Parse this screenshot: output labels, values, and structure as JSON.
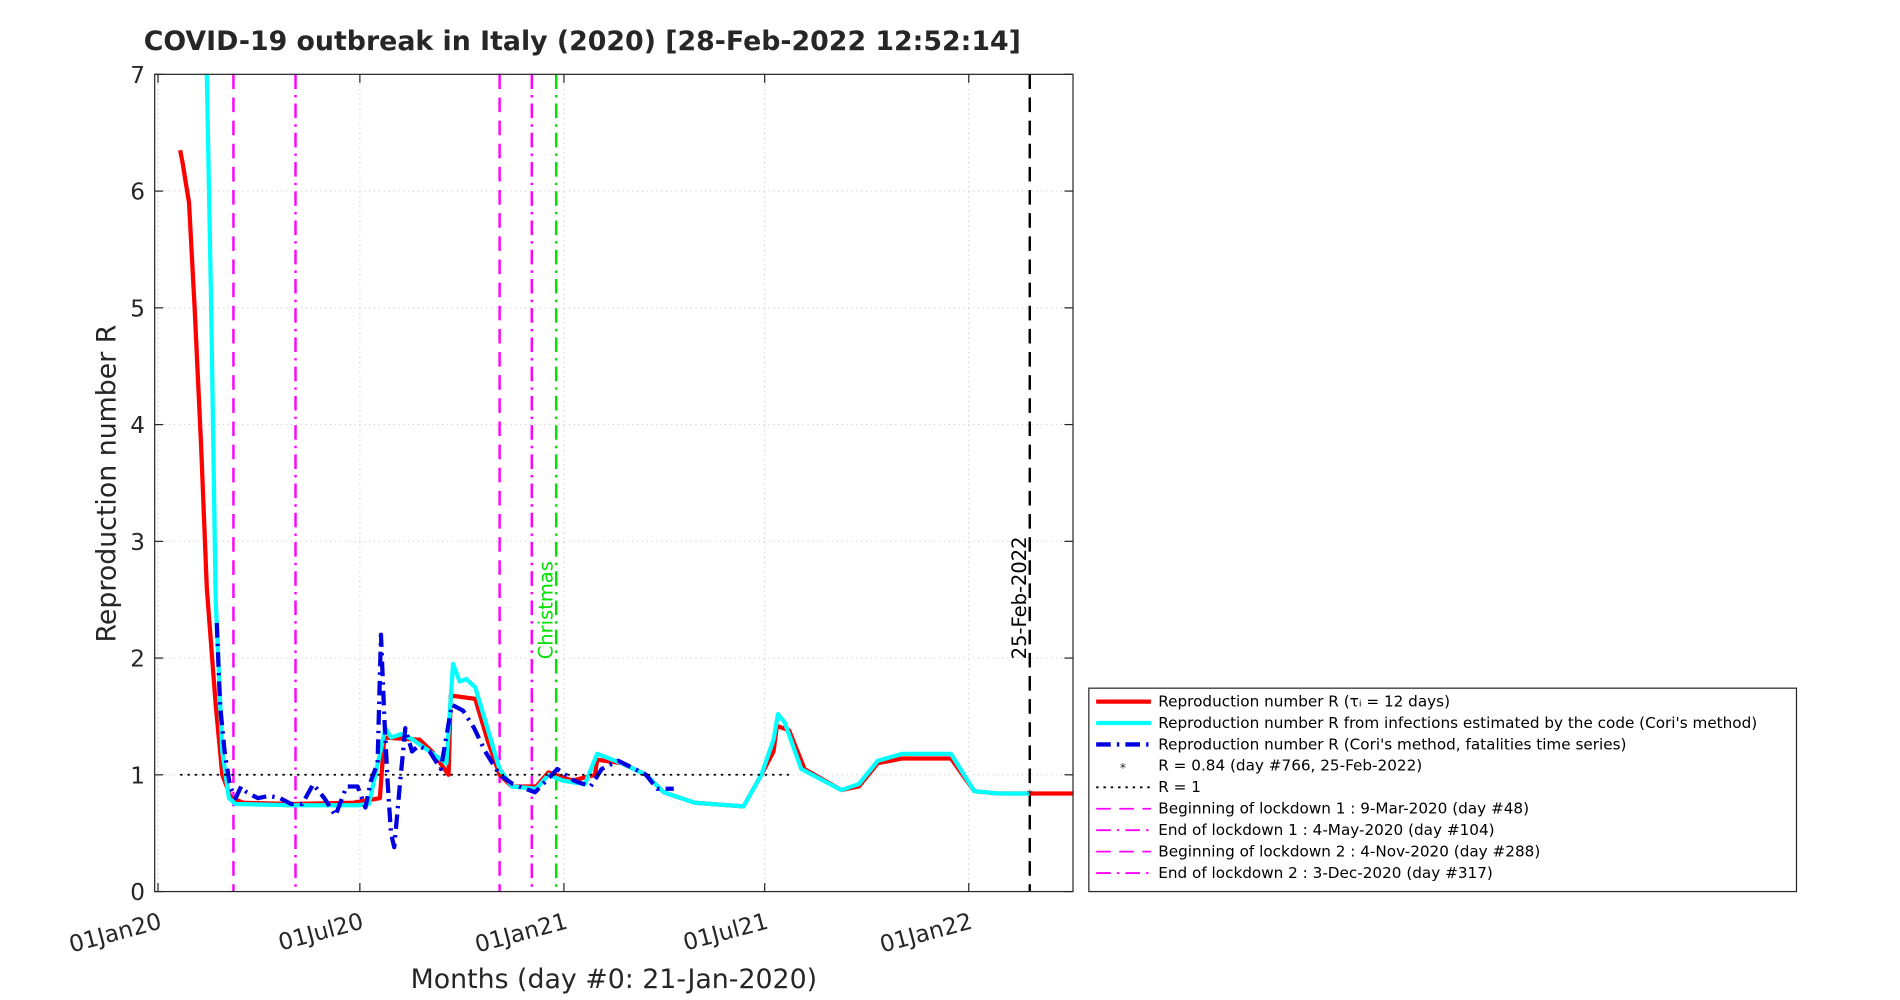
{
  "chart_data": {
    "type": "line",
    "title": "COVID-19 outbreak in Italy (2020) [28-Feb-2022 12:52:14]",
    "xlabel": "Months (day #0: 21-Jan-2020)",
    "ylabel": "Reproduction number R",
    "xlim": [
      -23,
      805
    ],
    "ylim": [
      0,
      7
    ],
    "xticks": [
      {
        "value": -20,
        "label": "01Jan20"
      },
      {
        "value": 162,
        "label": "01Jul20"
      },
      {
        "value": 346,
        "label": "01Jan21"
      },
      {
        "value": 527,
        "label": "01Jul21"
      },
      {
        "value": 711,
        "label": "01Jan22"
      }
    ],
    "yticks": [
      0,
      1,
      2,
      3,
      4,
      5,
      6,
      7
    ],
    "grid": true,
    "legend_location": "southeastoutside",
    "series": [
      {
        "name": "Reproduction number R (τᵢ = 12 days)",
        "color": "#ff0000",
        "style": "solid",
        "width": 3.5,
        "x": [
          0,
          2,
          8,
          13,
          19,
          24,
          32,
          38,
          46,
          57,
          101,
          156,
          180,
          184,
          216,
          227,
          242,
          244,
          266,
          277,
          288,
          299,
          321,
          332,
          354,
          374,
          376,
          398,
          420,
          436,
          464,
          508,
          524,
          535,
          538,
          549,
          563,
          596,
          612,
          629,
          651,
          695,
          716,
          738,
          805
        ],
        "values": [
          6.35,
          6.25,
          5.9,
          5.0,
          3.8,
          2.6,
          1.6,
          1.0,
          0.8,
          0.76,
          0.75,
          0.76,
          0.8,
          1.32,
          1.3,
          1.2,
          1.0,
          1.68,
          1.65,
          1.3,
          1.0,
          0.9,
          0.9,
          1.02,
          0.95,
          1.0,
          1.13,
          1.1,
          1.0,
          0.85,
          0.76,
          0.73,
          1.0,
          1.2,
          1.42,
          1.38,
          1.05,
          0.87,
          0.9,
          1.1,
          1.14,
          1.14,
          0.86,
          0.84,
          0.84
        ]
      },
      {
        "name": "Reproduction number R from infections estimated by the code (Cori's method)",
        "color": "#00ffff",
        "style": "solid",
        "width": 3.5,
        "x": [
          24,
          28,
          32,
          38,
          44,
          50,
          100,
          160,
          170,
          176,
          185,
          190,
          200,
          210,
          225,
          240,
          246,
          252,
          258,
          266,
          277,
          288,
          299,
          321,
          332,
          345,
          365,
          376,
          398,
          420,
          436,
          464,
          508,
          524,
          535,
          539,
          545,
          560,
          596,
          612,
          629,
          651,
          695,
          716,
          738,
          766
        ],
        "values": [
          7,
          5,
          2.5,
          1.2,
          0.8,
          0.75,
          0.74,
          0.74,
          0.75,
          1.0,
          1.4,
          1.32,
          1.35,
          1.3,
          1.2,
          1.1,
          1.95,
          1.8,
          1.82,
          1.75,
          1.4,
          1.05,
          0.9,
          0.88,
          1.0,
          0.95,
          0.92,
          1.18,
          1.1,
          1.0,
          0.85,
          0.76,
          0.73,
          1.0,
          1.3,
          1.52,
          1.45,
          1.05,
          0.87,
          0.92,
          1.12,
          1.18,
          1.18,
          0.86,
          0.84,
          0.84
        ]
      },
      {
        "name": "Reproduction number R (Cori's method, fatalities time series)",
        "color": "#0000e0",
        "style": "dashdot",
        "width": 3.5,
        "x": [
          33,
          36,
          40,
          45,
          50,
          55,
          60,
          70,
          80,
          90,
          100,
          110,
          120,
          130,
          140,
          150,
          160,
          167,
          172,
          178,
          181,
          184,
          187,
          190,
          193,
          198,
          203,
          209,
          215,
          225,
          235,
          245,
          255,
          265,
          275,
          288,
          300,
          320,
          330,
          340,
          355,
          370,
          380,
          395,
          410,
          420,
          430,
          445
        ],
        "values": [
          2.3,
          1.6,
          1.2,
          0.9,
          0.8,
          0.9,
          0.85,
          0.8,
          0.82,
          0.8,
          0.75,
          0.75,
          0.92,
          0.8,
          0.65,
          0.9,
          0.9,
          0.72,
          0.95,
          1.1,
          2.2,
          1.5,
          0.95,
          0.5,
          0.38,
          0.9,
          1.4,
          1.2,
          1.25,
          1.2,
          1.05,
          1.6,
          1.55,
          1.4,
          1.2,
          1.0,
          0.92,
          0.85,
          0.95,
          1.05,
          0.95,
          0.9,
          1.05,
          1.12,
          1.05,
          1.0,
          0.88,
          0.88
        ]
      },
      {
        "name": "R = 0.84 (day #766, 25-Feb-2022)",
        "color": "#ff0000",
        "style": "marker",
        "x": [
          766
        ],
        "values": [
          0.84
        ]
      },
      {
        "name": "R = 1",
        "color": "#000000",
        "style": "dot",
        "width": 1.5,
        "x": [
          0,
          552
        ],
        "values": [
          1,
          1
        ]
      }
    ],
    "reference_lines": [
      {
        "name": "Beginning of lockdown 1 : 9-Mar-2020 (day #48)",
        "x": 48,
        "color": "#ff00ff",
        "style": "dash"
      },
      {
        "name": "End of lockdown 1 : 4-May-2020 (day #104)",
        "x": 104,
        "color": "#ff00ff",
        "style": "dashdot"
      },
      {
        "name": "Beginning of lockdown 2 : 4-Nov-2020 (day #288)",
        "x": 288,
        "color": "#ff00ff",
        "style": "dash"
      },
      {
        "name": "End of lockdown 2 : 3-Dec-2020 (day #317)",
        "x": 317,
        "color": "#ff00ff",
        "style": "dashdot"
      },
      {
        "label": "Christmas",
        "x": 339,
        "color": "#00e000",
        "style": "dashdot"
      },
      {
        "label": "25-Feb-2022",
        "x": 766,
        "color": "#000000",
        "style": "dash"
      }
    ]
  }
}
